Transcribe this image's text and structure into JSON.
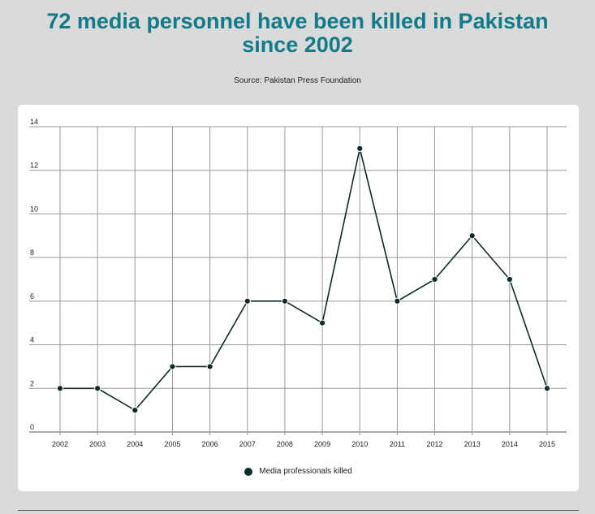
{
  "header": {
    "title": "72 media personnel have been killed in Pakistan since 2002",
    "source": "Source: Pakistan Press Foundation"
  },
  "chart_data": {
    "type": "line",
    "title": "72 media personnel have been killed in Pakistan since 2002",
    "categories": [
      "2002",
      "2003",
      "2004",
      "2005",
      "2006",
      "2007",
      "2008",
      "2009",
      "2010",
      "2011",
      "2012",
      "2013",
      "2014",
      "2015"
    ],
    "series": [
      {
        "name": "Media professionals killed",
        "values": [
          2,
          2,
          1,
          3,
          3,
          6,
          6,
          5,
          13,
          6,
          7,
          9,
          7,
          2
        ]
      }
    ],
    "xlabel": "",
    "ylabel": "",
    "ylim": [
      0,
      14
    ],
    "yticks": [
      0,
      2,
      4,
      6,
      8,
      10,
      12,
      14
    ],
    "grid": true,
    "legend": "bottom-center",
    "colors": {
      "line": "#0f2a2a",
      "grid": "#999999",
      "title": "#137a8a"
    }
  }
}
